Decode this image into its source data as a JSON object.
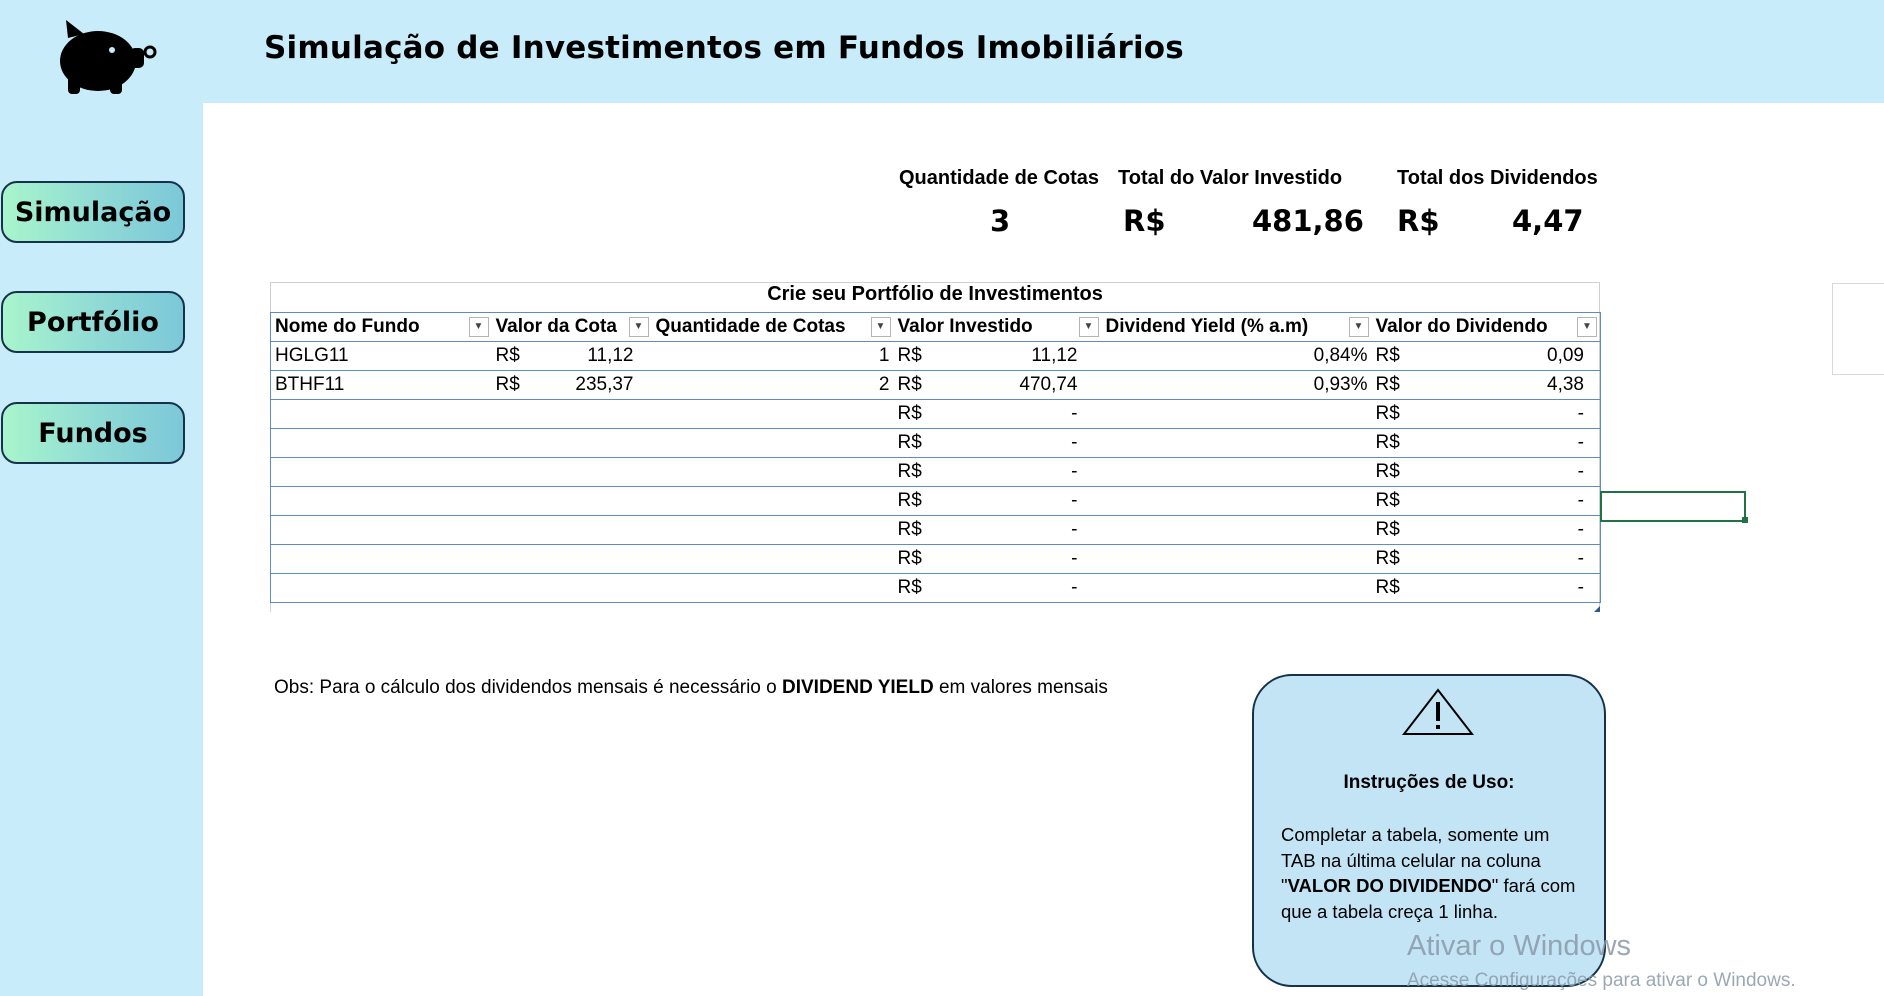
{
  "header": {
    "title": "Simulação de Investimentos em Fundos Imobiliários",
    "logo_icon": "piggy-bank-icon"
  },
  "nav": [
    {
      "label": "Simulação"
    },
    {
      "label": "Portfólio"
    },
    {
      "label": "Fundos"
    }
  ],
  "summary": {
    "qty_label": "Quantidade de Cotas",
    "qty_value": "3",
    "invested_label": "Total do Valor Investido",
    "invested_currency": "R$",
    "invested_value": "481,86",
    "dividends_label": "Total dos Dividendos",
    "dividends_currency": "R$",
    "dividends_value": "4,47"
  },
  "table": {
    "caption": "Crie seu Portfólio de Investimentos",
    "headers": [
      "Nome do Fundo",
      "Valor da Cota",
      "Quantidade de Cotas",
      "Valor Investido",
      "Dividend Yield (% a.m)",
      "Valor do Dividendo"
    ],
    "rows": [
      {
        "name": "HGLG11",
        "cota_cur": "R$",
        "cota": "11,12",
        "qty": "1",
        "inv_cur": "R$",
        "inv": "11,12",
        "dy": "0,84%",
        "div_cur": "R$",
        "div": "0,09"
      },
      {
        "name": "BTHF11",
        "cota_cur": "R$",
        "cota": "235,37",
        "qty": "2",
        "inv_cur": "R$",
        "inv": "470,74",
        "dy": "0,93%",
        "div_cur": "R$",
        "div": "4,38"
      },
      {
        "name": "",
        "cota_cur": "",
        "cota": "",
        "qty": "",
        "inv_cur": "R$",
        "inv": "-",
        "dy": "",
        "div_cur": "R$",
        "div": "-"
      },
      {
        "name": "",
        "cota_cur": "",
        "cota": "",
        "qty": "",
        "inv_cur": "R$",
        "inv": "-",
        "dy": "",
        "div_cur": "R$",
        "div": "-"
      },
      {
        "name": "",
        "cota_cur": "",
        "cota": "",
        "qty": "",
        "inv_cur": "R$",
        "inv": "-",
        "dy": "",
        "div_cur": "R$",
        "div": "-"
      },
      {
        "name": "",
        "cota_cur": "",
        "cota": "",
        "qty": "",
        "inv_cur": "R$",
        "inv": "-",
        "dy": "",
        "div_cur": "R$",
        "div": "-"
      },
      {
        "name": "",
        "cota_cur": "",
        "cota": "",
        "qty": "",
        "inv_cur": "R$",
        "inv": "-",
        "dy": "",
        "div_cur": "R$",
        "div": "-"
      },
      {
        "name": "",
        "cota_cur": "",
        "cota": "",
        "qty": "",
        "inv_cur": "R$",
        "inv": "-",
        "dy": "",
        "div_cur": "R$",
        "div": "-"
      },
      {
        "name": "",
        "cota_cur": "",
        "cota": "",
        "qty": "",
        "inv_cur": "R$",
        "inv": "-",
        "dy": "",
        "div_cur": "R$",
        "div": "-"
      }
    ]
  },
  "obs": {
    "prefix": "Obs: Para o cálculo dos dividendos mensais é necessário o ",
    "bold": "DIVIDEND YIELD",
    "suffix": " em valores mensais"
  },
  "instructions": {
    "title": "Instruções de Uso:",
    "text_1": "Completar a tabela, somente um TAB na última celular na coluna \"",
    "text_bold": "VALOR DO DIVIDENDO",
    "text_2": "\" fará com que a tabela creça 1 linha."
  },
  "watermark": {
    "line1": "Ativar o Windows",
    "line2": "Acesse Configurações para ativar o Windows."
  }
}
